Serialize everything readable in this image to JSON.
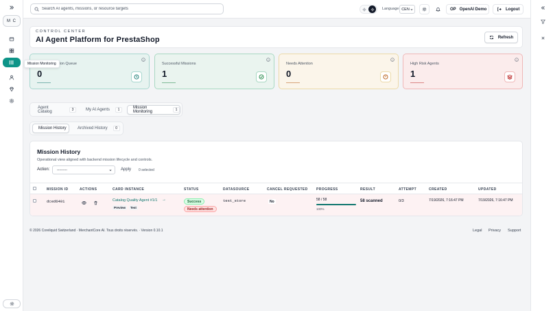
{
  "topbar": {
    "search_placeholder": "Search AI agents, missions, or resource targets",
    "language_label": "Language",
    "language_value": "CEN",
    "user_initials": "OP",
    "user_name": "OpenAI Demo",
    "logout_label": "Logout"
  },
  "sidebar": {
    "workspace_initials": "M C",
    "tooltip": "Mission Monitoring",
    "items": [
      {
        "icon": "layers-icon"
      },
      {
        "icon": "grid-icon"
      },
      {
        "icon": "list-icon"
      },
      {
        "icon": "user-icon"
      },
      {
        "icon": "diamond-icon"
      },
      {
        "icon": "gear-icon"
      }
    ]
  },
  "header": {
    "eyebrow": "CONTROL CENTER",
    "title": "AI Agent Platform for PrestaShop",
    "refresh_label": "Refresh"
  },
  "stats": [
    {
      "label": "Mission Queue",
      "label_visible": "ssion Queue",
      "value": "0",
      "bg": "#e7f3f0",
      "border": "#a7d7cf",
      "accent": "#0f766e",
      "icon": "clock-icon"
    },
    {
      "label": "Successful Missions",
      "value": "1",
      "bg": "#eaf4ef",
      "border": "#a8d8c2",
      "accent": "#15803d",
      "icon": "check-circle-icon"
    },
    {
      "label": "Needs Attention",
      "value": "0",
      "bg": "#fbf5ea",
      "border": "#ecd9a8",
      "accent": "#b45309",
      "icon": "alert-circle-icon"
    },
    {
      "label": "High Risk Agents",
      "value": "1",
      "bg": "#fbecec",
      "border": "#efb7b7",
      "accent": "#b91c1c",
      "icon": "stack-icon"
    }
  ],
  "tabs": [
    {
      "label": "Agent Catalog",
      "count": "3",
      "active": false
    },
    {
      "label": "My AI Agents",
      "count": "1",
      "active": false
    },
    {
      "label": "Mission Monitoring",
      "count": "1",
      "active": true
    }
  ],
  "subtabs": [
    {
      "label": "Mission History",
      "active": true
    },
    {
      "label": "Archived History",
      "count": "0",
      "active": false
    }
  ],
  "panel": {
    "title": "Mission History",
    "subtitle": "Operational view aligned with backend mission lifecycle and controls.",
    "action_label": "Action:",
    "action_value": "---------",
    "apply_label": "Apply",
    "selected_text": "0 selected"
  },
  "table": {
    "columns": [
      "MISSION ID",
      "ACTIONS",
      "CARD INSTANCE",
      "STATUS",
      "DATASOURCE",
      "CANCEL REQUESTED",
      "PROGRESS",
      "RESULT",
      "ATTEMPT",
      "CREATED",
      "UPDATED"
    ],
    "rows": [
      {
        "mission_id": "dced6401",
        "card_instance": "Catalog Quality Agent #1/1",
        "tags": [
          "Preview",
          "Test"
        ],
        "status": "Success",
        "status_secondary": "Needs attention",
        "datasource": "test_store",
        "cancel_requested": "No",
        "progress_text": "58 / 58",
        "progress_percent": "100%",
        "progress_value": 1.0,
        "result": "58 scanned",
        "attempt": "0/3",
        "created": "7/19/2026, 7:16:47 PM",
        "updated": "7/19/2026, 7:16:47 PM"
      }
    ]
  },
  "footer": {
    "copyright": "© 2026 Coreliquid Switzerland · MerchantCore AI. Tous droits réservés. · Version 0.10.1",
    "links": [
      "Legal",
      "Privacy",
      "Support"
    ]
  }
}
